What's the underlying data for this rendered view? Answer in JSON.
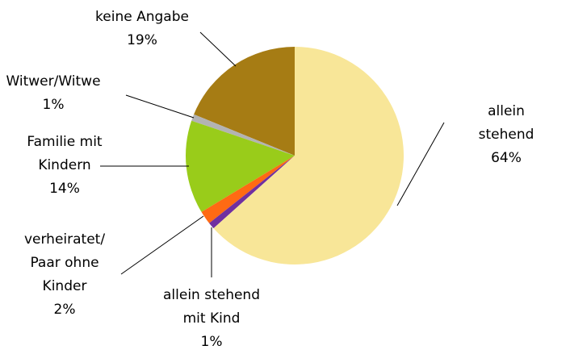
{
  "chart_data": {
    "type": "pie",
    "categories": [
      "allein stehend",
      "allein stehend\nmit Kind",
      "verheiratet/\nPaar ohne\nKinder",
      "Familie mit\nKindern",
      "Witwer/Witwe",
      "keine Angabe"
    ],
    "values": [
      64,
      1,
      2,
      14,
      1,
      19
    ],
    "value_labels": [
      "64%",
      "1%",
      "2%",
      "14%",
      "1%",
      "19%"
    ],
    "colors": [
      "#f8e698",
      "#7030a0",
      "#ff6a13",
      "#99cc1a",
      "#b3b3b3",
      "#a67c14"
    ]
  }
}
